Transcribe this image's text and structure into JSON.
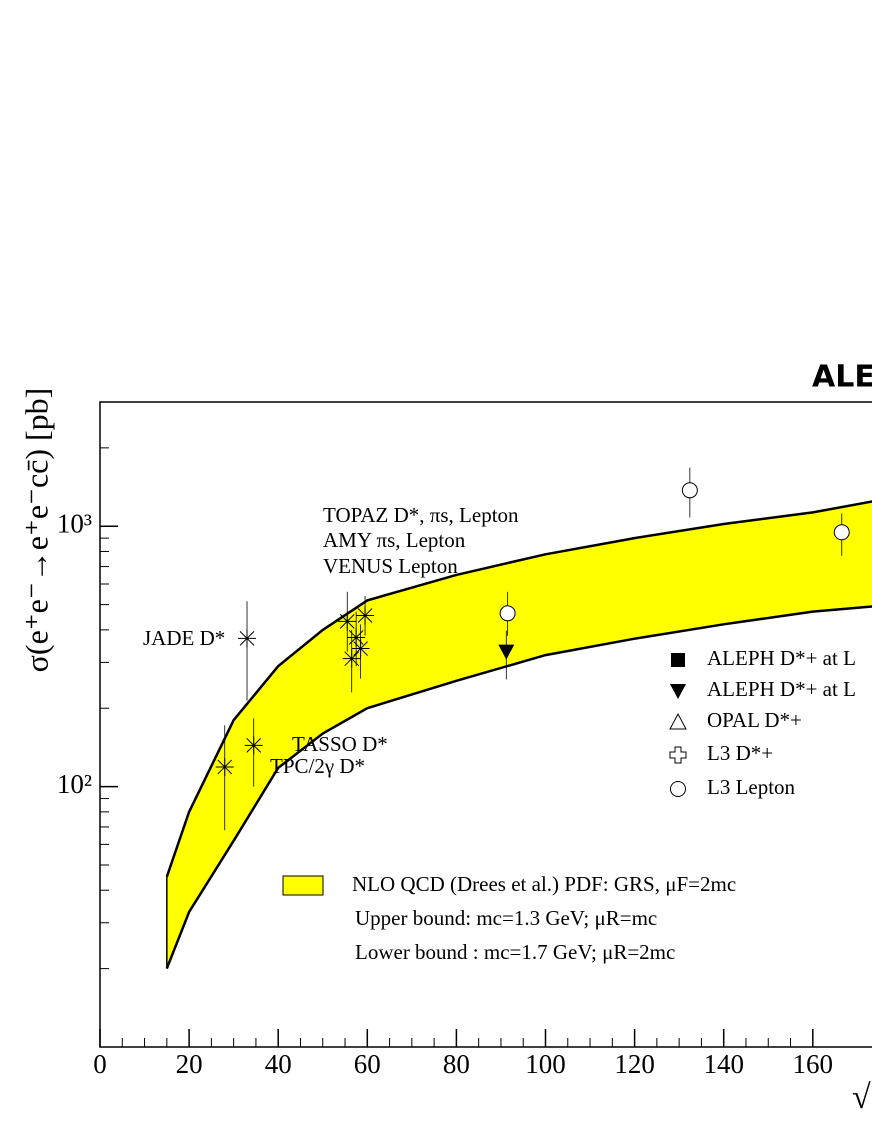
{
  "chart_data": {
    "type": "scatter",
    "title": "ALE",
    "y_label": "σ(e⁺e⁻→e⁺e⁻cc̄) [pb]",
    "x_label": "√",
    "xlim": [
      0,
      210
    ],
    "ylim": [
      10,
      3000
    ],
    "log_y": true,
    "xticks": [
      0,
      20,
      40,
      60,
      80,
      100,
      120,
      140,
      160
    ],
    "yticks": [
      {
        "value": 100,
        "label": "10²"
      },
      {
        "value": 1000,
        "label": "10³"
      }
    ],
    "band": {
      "color": "#ffff00",
      "x": [
        15,
        20,
        30,
        40,
        50,
        60,
        80,
        100,
        120,
        140,
        160,
        175
      ],
      "upper": [
        45,
        80,
        180,
        290,
        400,
        519,
        650,
        780,
        900,
        1020,
        1130,
        1260
      ],
      "lower": [
        20,
        33,
        62,
        118,
        160,
        200,
        255,
        320,
        370,
        420,
        470,
        495
      ]
    },
    "series": [
      {
        "name": "ALEPH D*+ at L",
        "marker": "square",
        "x": [],
        "values": [],
        "low": [],
        "high": []
      },
      {
        "name": "ALEPH D*+ at L",
        "marker": "triangle-down",
        "x": [
          91.2
        ],
        "values": [
          330
        ],
        "low": [
          258
        ],
        "high": [
          397
        ]
      },
      {
        "name": "OPAL D*+",
        "marker": "triangle-open",
        "x": [],
        "values": [],
        "low": [],
        "high": []
      },
      {
        "name": "L3 D*+",
        "marker": "cross-open",
        "x": [],
        "values": [],
        "low": [],
        "high": []
      },
      {
        "name": "L3 Lepton",
        "marker": "circle-open",
        "x": [
          91.5,
          132.4,
          166.5
        ],
        "values": [
          463,
          1374,
          948
        ],
        "low": [
          380,
          1080,
          770
        ],
        "high": [
          560,
          1680,
          1120
        ]
      }
    ],
    "other_points": {
      "marker": "star",
      "x": [
        33,
        28,
        34.5,
        55.5,
        56.5,
        57.5,
        58.5,
        59.5
      ],
      "values": [
        371,
        119,
        144,
        431,
        310,
        374,
        339,
        454
      ],
      "low": [
        214,
        68,
        100,
        330,
        230,
        290,
        260,
        380
      ],
      "high": [
        515,
        172,
        183,
        560,
        400,
        470,
        420,
        540
      ]
    },
    "annotations": [
      "JADE D*",
      "TASSO D*",
      "TPC/2γ D*",
      "TOPAZ D*, πs, Lepton",
      "AMY πs, Lepton",
      "VENUS Lepton",
      "NLO QCD (Drees et al.) PDF: GRS, μF=2mc",
      "Upper bound:  mc=1.3 GeV; μR=mc",
      "Lower bound : mc=1.7 GeV; μR=2mc"
    ]
  }
}
